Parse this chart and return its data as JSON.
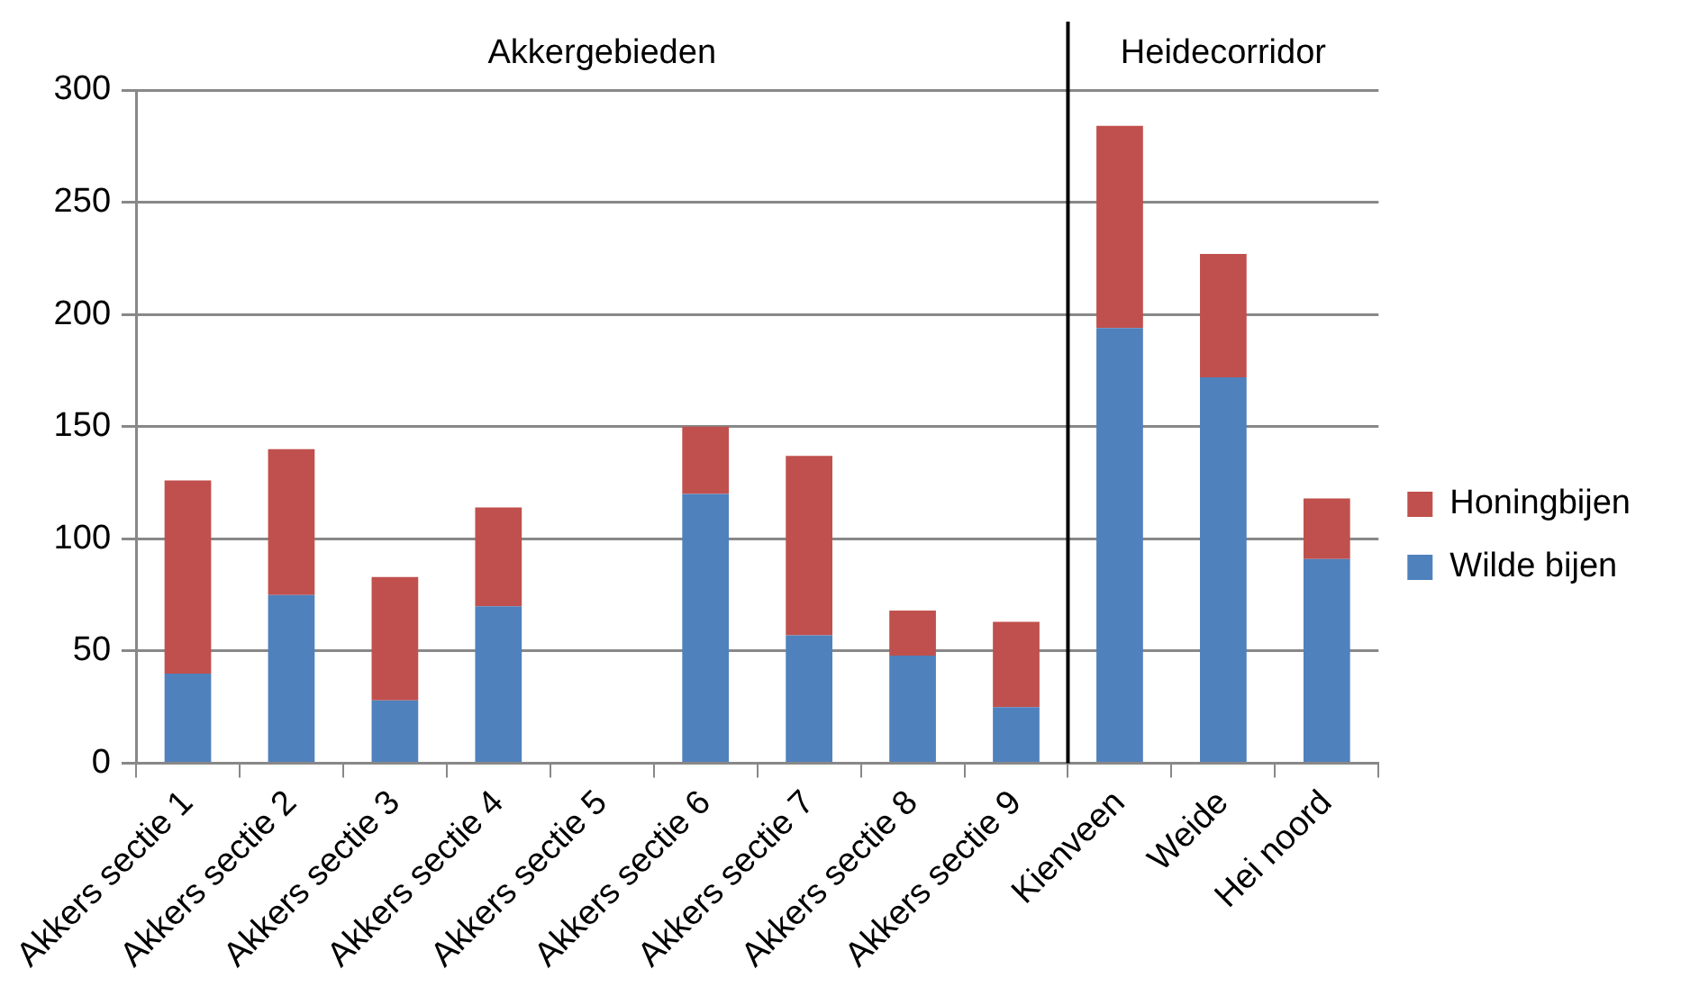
{
  "chart_data": {
    "type": "bar",
    "stacked": true,
    "categories": [
      "Akkers sectie 1",
      "Akkers sectie 2",
      "Akkers sectie 3",
      "Akkers sectie 4",
      "Akkers sectie 5",
      "Akkers sectie 6",
      "Akkers sectie 7",
      "Akkers sectie 8",
      "Akkers sectie 9",
      "Kienveen",
      "Weide",
      "Hei noord"
    ],
    "series": [
      {
        "name": "Wilde bijen",
        "color": "#4f81bd",
        "values": [
          40,
          75,
          28,
          70,
          0,
          120,
          57,
          48,
          25,
          194,
          172,
          91
        ]
      },
      {
        "name": "Honingbijen",
        "color": "#c0504d",
        "values": [
          86,
          65,
          55,
          44,
          0,
          30,
          80,
          20,
          38,
          90,
          55,
          27
        ]
      }
    ],
    "ylim": [
      0,
      300
    ],
    "yticks": [
      0,
      50,
      100,
      150,
      200,
      250,
      300
    ],
    "grid": "y",
    "legend": "right",
    "annotations": [
      "Akkergebieden",
      "Heidecorridor"
    ],
    "ref_lines": [
      {
        "axis": "x",
        "value": "Kienveen",
        "color": "#000000"
      }
    ]
  }
}
